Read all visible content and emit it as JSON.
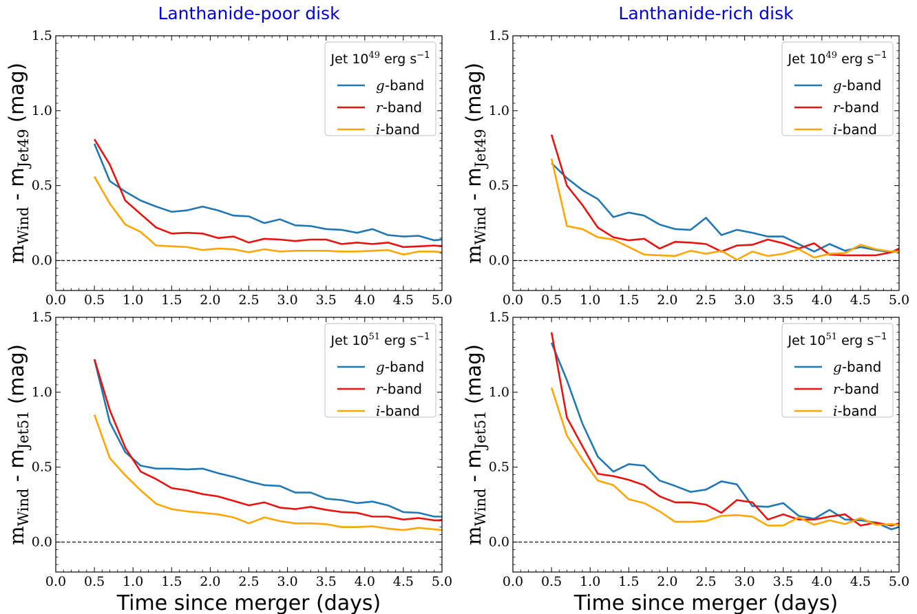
{
  "colors": {
    "g_band": "#1f77b4",
    "r_band": "#e8130f",
    "i_band": "#ffa500",
    "title": "#0000dd",
    "reference_line": "#000000"
  },
  "figure": {
    "column_titles": [
      "Lanthanide-poor disk",
      "Lanthanide-rich disk"
    ],
    "xlabel": "Time since merger (days)",
    "row_ylabels": [
      {
        "main": "m",
        "sub1": "Wind",
        "dash": " - m",
        "sub2": "Jet49",
        "unit": " (mag)"
      },
      {
        "main": "m",
        "sub1": "Wind",
        "dash": " - m",
        "sub2": "Jet51",
        "unit": " (mag)"
      }
    ],
    "legend_titles": [
      {
        "prefix": "Jet 10",
        "exp": "49",
        "suffix": " erg s",
        "unit_exp": "−1"
      },
      {
        "prefix": "Jet 10",
        "exp": "51",
        "suffix": " erg s",
        "unit_exp": "−1"
      }
    ]
  },
  "chart_data": [
    {
      "type": "line",
      "row": 0,
      "col": 0,
      "title": "Lanthanide-poor disk",
      "xlabel": "",
      "ylabel": "mWind - mJet49 (mag)",
      "xlim": [
        0,
        5
      ],
      "ylim": [
        -0.2,
        1.5
      ],
      "xticks": [
        "0.0",
        "0.5",
        "1.0",
        "1.5",
        "2.0",
        "2.5",
        "3.0",
        "3.5",
        "4.0",
        "4.5",
        "5.0"
      ],
      "yticks": [
        "0.0",
        "0.5",
        "1.0",
        "1.5"
      ],
      "legend_title": "Jet 10^49 erg s^-1",
      "legend_position": "top-right",
      "reference_line_y": 0,
      "x": [
        0.5,
        0.7,
        0.9,
        1.1,
        1.3,
        1.5,
        1.7,
        1.9,
        2.1,
        2.3,
        2.5,
        2.7,
        2.9,
        3.1,
        3.3,
        3.5,
        3.7,
        3.9,
        4.1,
        4.3,
        4.5,
        4.7,
        4.9,
        5.0
      ],
      "series": [
        {
          "name": "g-band",
          "color": "#1f77b4",
          "values": [
            0.78,
            0.53,
            0.46,
            0.4,
            0.36,
            0.325,
            0.335,
            0.36,
            0.335,
            0.3,
            0.295,
            0.25,
            0.275,
            0.235,
            0.23,
            0.21,
            0.205,
            0.185,
            0.21,
            0.17,
            0.16,
            0.165,
            0.135,
            0.14
          ]
        },
        {
          "name": "r-band",
          "color": "#e8130f",
          "values": [
            0.81,
            0.64,
            0.4,
            0.31,
            0.22,
            0.18,
            0.185,
            0.18,
            0.15,
            0.16,
            0.12,
            0.145,
            0.14,
            0.13,
            0.14,
            0.14,
            0.11,
            0.12,
            0.11,
            0.12,
            0.09,
            0.095,
            0.1,
            0.095
          ]
        },
        {
          "name": "i-band",
          "color": "#ffa500",
          "values": [
            0.56,
            0.38,
            0.24,
            0.19,
            0.1,
            0.095,
            0.09,
            0.07,
            0.08,
            0.075,
            0.055,
            0.075,
            0.06,
            0.065,
            0.065,
            0.065,
            0.06,
            0.06,
            0.065,
            0.07,
            0.04,
            0.06,
            0.06,
            0.055
          ]
        }
      ]
    },
    {
      "type": "line",
      "row": 0,
      "col": 1,
      "title": "Lanthanide-rich disk",
      "xlabel": "",
      "ylabel": "mWind - mJet49 (mag)",
      "xlim": [
        0,
        5
      ],
      "ylim": [
        -0.2,
        1.5
      ],
      "xticks": [
        "0.0",
        "0.5",
        "1.0",
        "1.5",
        "2.0",
        "2.5",
        "3.0",
        "3.5",
        "4.0",
        "4.5",
        "5.0"
      ],
      "yticks": [
        "0.0",
        "0.5",
        "1.0",
        "1.5"
      ],
      "legend_title": "Jet 10^49 erg s^-1",
      "legend_position": "top-right",
      "reference_line_y": 0,
      "x": [
        0.5,
        0.7,
        0.9,
        1.1,
        1.3,
        1.5,
        1.7,
        1.9,
        2.1,
        2.3,
        2.5,
        2.7,
        2.9,
        3.1,
        3.3,
        3.5,
        3.7,
        3.9,
        4.1,
        4.3,
        4.5,
        4.7,
        4.9,
        5.0
      ],
      "series": [
        {
          "name": "g-band",
          "color": "#1f77b4",
          "values": [
            0.65,
            0.55,
            0.47,
            0.41,
            0.29,
            0.32,
            0.3,
            0.24,
            0.21,
            0.205,
            0.285,
            0.17,
            0.205,
            0.185,
            0.16,
            0.16,
            0.11,
            0.06,
            0.11,
            0.065,
            0.09,
            0.07,
            0.055,
            0.065
          ]
        },
        {
          "name": "r-band",
          "color": "#e8130f",
          "values": [
            0.84,
            0.5,
            0.37,
            0.22,
            0.155,
            0.135,
            0.145,
            0.08,
            0.125,
            0.12,
            0.11,
            0.06,
            0.1,
            0.105,
            0.14,
            0.115,
            0.08,
            0.115,
            0.04,
            0.035,
            0.035,
            0.035,
            0.055,
            0.08
          ]
        },
        {
          "name": "i-band",
          "color": "#ffa500",
          "values": [
            0.68,
            0.23,
            0.21,
            0.155,
            0.14,
            0.09,
            0.04,
            0.035,
            0.03,
            0.065,
            0.045,
            0.065,
            0.005,
            0.06,
            0.03,
            0.045,
            0.075,
            0.02,
            0.045,
            0.05,
            0.105,
            0.075,
            0.06,
            0.06
          ]
        }
      ]
    },
    {
      "type": "line",
      "row": 1,
      "col": 0,
      "title": "",
      "xlabel": "Time since merger (days)",
      "ylabel": "mWind - mJet51 (mag)",
      "xlim": [
        0,
        5
      ],
      "ylim": [
        -0.2,
        1.5
      ],
      "xticks": [
        "0.0",
        "0.5",
        "1.0",
        "1.5",
        "2.0",
        "2.5",
        "3.0",
        "3.5",
        "4.0",
        "4.5",
        "5.0"
      ],
      "yticks": [
        "0.0",
        "0.5",
        "1.0",
        "1.5"
      ],
      "legend_title": "Jet 10^51 erg s^-1",
      "legend_position": "top-right",
      "reference_line_y": 0,
      "x": [
        0.5,
        0.7,
        0.9,
        1.1,
        1.3,
        1.5,
        1.7,
        1.9,
        2.1,
        2.3,
        2.5,
        2.7,
        2.9,
        3.1,
        3.3,
        3.5,
        3.7,
        3.9,
        4.1,
        4.3,
        4.5,
        4.7,
        4.9,
        5.0
      ],
      "series": [
        {
          "name": "g-band",
          "color": "#1f77b4",
          "values": [
            1.22,
            0.8,
            0.6,
            0.51,
            0.49,
            0.49,
            0.485,
            0.49,
            0.46,
            0.435,
            0.405,
            0.38,
            0.375,
            0.33,
            0.33,
            0.29,
            0.28,
            0.26,
            0.27,
            0.245,
            0.2,
            0.195,
            0.17,
            0.17
          ]
        },
        {
          "name": "r-band",
          "color": "#e8130f",
          "values": [
            1.22,
            0.88,
            0.63,
            0.47,
            0.42,
            0.36,
            0.345,
            0.32,
            0.305,
            0.275,
            0.245,
            0.265,
            0.23,
            0.22,
            0.235,
            0.215,
            0.2,
            0.195,
            0.17,
            0.17,
            0.15,
            0.16,
            0.145,
            0.145
          ]
        },
        {
          "name": "i-band",
          "color": "#ffa500",
          "values": [
            0.85,
            0.56,
            0.445,
            0.345,
            0.255,
            0.22,
            0.205,
            0.195,
            0.185,
            0.165,
            0.125,
            0.165,
            0.14,
            0.125,
            0.125,
            0.12,
            0.1,
            0.1,
            0.105,
            0.09,
            0.08,
            0.095,
            0.085,
            0.08
          ]
        }
      ]
    },
    {
      "type": "line",
      "row": 1,
      "col": 1,
      "title": "",
      "xlabel": "Time since merger (days)",
      "ylabel": "mWind - mJet51 (mag)",
      "xlim": [
        0,
        5
      ],
      "ylim": [
        -0.2,
        1.5
      ],
      "xticks": [
        "0.0",
        "0.5",
        "1.0",
        "1.5",
        "2.0",
        "2.5",
        "3.0",
        "3.5",
        "4.0",
        "4.5",
        "5.0"
      ],
      "yticks": [
        "0.0",
        "0.5",
        "1.0",
        "1.5"
      ],
      "legend_title": "Jet 10^51 erg s^-1",
      "legend_position": "top-right",
      "reference_line_y": 0,
      "x": [
        0.5,
        0.7,
        0.9,
        1.1,
        1.3,
        1.5,
        1.7,
        1.9,
        2.1,
        2.3,
        2.5,
        2.7,
        2.9,
        3.1,
        3.3,
        3.5,
        3.7,
        3.9,
        4.1,
        4.3,
        4.5,
        4.7,
        4.9,
        5.0
      ],
      "series": [
        {
          "name": "g-band",
          "color": "#1f77b4",
          "values": [
            1.33,
            1.08,
            0.79,
            0.57,
            0.47,
            0.52,
            0.51,
            0.41,
            0.375,
            0.335,
            0.35,
            0.405,
            0.385,
            0.24,
            0.235,
            0.26,
            0.175,
            0.155,
            0.215,
            0.15,
            0.145,
            0.13,
            0.085,
            0.1
          ]
        },
        {
          "name": "r-band",
          "color": "#e8130f",
          "values": [
            1.4,
            0.83,
            0.64,
            0.455,
            0.44,
            0.415,
            0.38,
            0.305,
            0.265,
            0.265,
            0.25,
            0.195,
            0.28,
            0.265,
            0.15,
            0.185,
            0.15,
            0.15,
            0.17,
            0.185,
            0.11,
            0.13,
            0.11,
            0.125
          ]
        },
        {
          "name": "i-band",
          "color": "#ffa500",
          "values": [
            1.03,
            0.71,
            0.55,
            0.41,
            0.38,
            0.285,
            0.26,
            0.205,
            0.135,
            0.135,
            0.14,
            0.175,
            0.18,
            0.17,
            0.11,
            0.11,
            0.165,
            0.115,
            0.145,
            0.12,
            0.16,
            0.115,
            0.12,
            0.115
          ]
        }
      ]
    }
  ]
}
